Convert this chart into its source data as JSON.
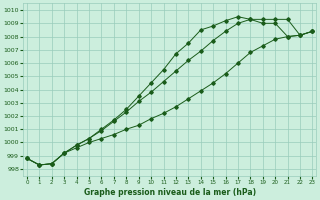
{
  "title": "Graphe pression niveau de la mer (hPa)",
  "bg_color": "#cceedd",
  "grid_color": "#99ccbb",
  "line_color": "#1a5c1a",
  "x_ticks": [
    0,
    1,
    2,
    3,
    4,
    5,
    6,
    7,
    8,
    9,
    10,
    11,
    12,
    13,
    14,
    15,
    16,
    17,
    18,
    19,
    20,
    21,
    22,
    23
  ],
  "ylim": [
    997.5,
    1010.5
  ],
  "xlim": [
    -0.3,
    23.3
  ],
  "yticks": [
    998,
    999,
    1000,
    1001,
    1002,
    1003,
    1004,
    1005,
    1006,
    1007,
    1008,
    1009,
    1010
  ],
  "line1_x": [
    0,
    1,
    2,
    3,
    4,
    5,
    6,
    7,
    8,
    9,
    10,
    11,
    12,
    13,
    14,
    15,
    16,
    17,
    18,
    19,
    20,
    21,
    22,
    23
  ],
  "line1_y": [
    998.8,
    998.3,
    998.4,
    999.2,
    999.8,
    1000.3,
    1000.9,
    1001.6,
    1002.3,
    1003.1,
    1003.8,
    1004.6,
    1005.4,
    1006.2,
    1006.9,
    1007.7,
    1008.4,
    1009.0,
    1009.3,
    1009.3,
    1009.3,
    1009.3,
    1008.1,
    1008.4
  ],
  "line2_x": [
    0,
    1,
    2,
    3,
    4,
    5,
    6,
    7,
    8,
    9,
    10,
    11,
    12,
    13,
    14,
    15,
    16,
    17,
    18,
    19,
    20,
    21,
    22,
    23
  ],
  "line2_y": [
    998.8,
    998.3,
    998.4,
    999.2,
    999.8,
    1000.3,
    1001.0,
    1001.7,
    1002.5,
    1003.5,
    1004.5,
    1005.5,
    1006.7,
    1007.5,
    1008.5,
    1008.8,
    1009.2,
    1009.5,
    1009.3,
    1009.0,
    1009.0,
    1008.0,
    1008.1,
    1008.4
  ],
  "line3_x": [
    0,
    1,
    2,
    3,
    4,
    5,
    6,
    7,
    8,
    9,
    10,
    11,
    12,
    13,
    14,
    15,
    16,
    17,
    18,
    19,
    20,
    21,
    22,
    23
  ],
  "line3_y": [
    998.8,
    998.3,
    998.4,
    999.2,
    999.6,
    1000.0,
    1000.3,
    1000.6,
    1001.0,
    1001.3,
    1001.8,
    1002.2,
    1002.7,
    1003.3,
    1003.9,
    1004.5,
    1005.2,
    1006.0,
    1006.8,
    1007.3,
    1007.8,
    1008.0,
    1008.1,
    1008.4
  ]
}
